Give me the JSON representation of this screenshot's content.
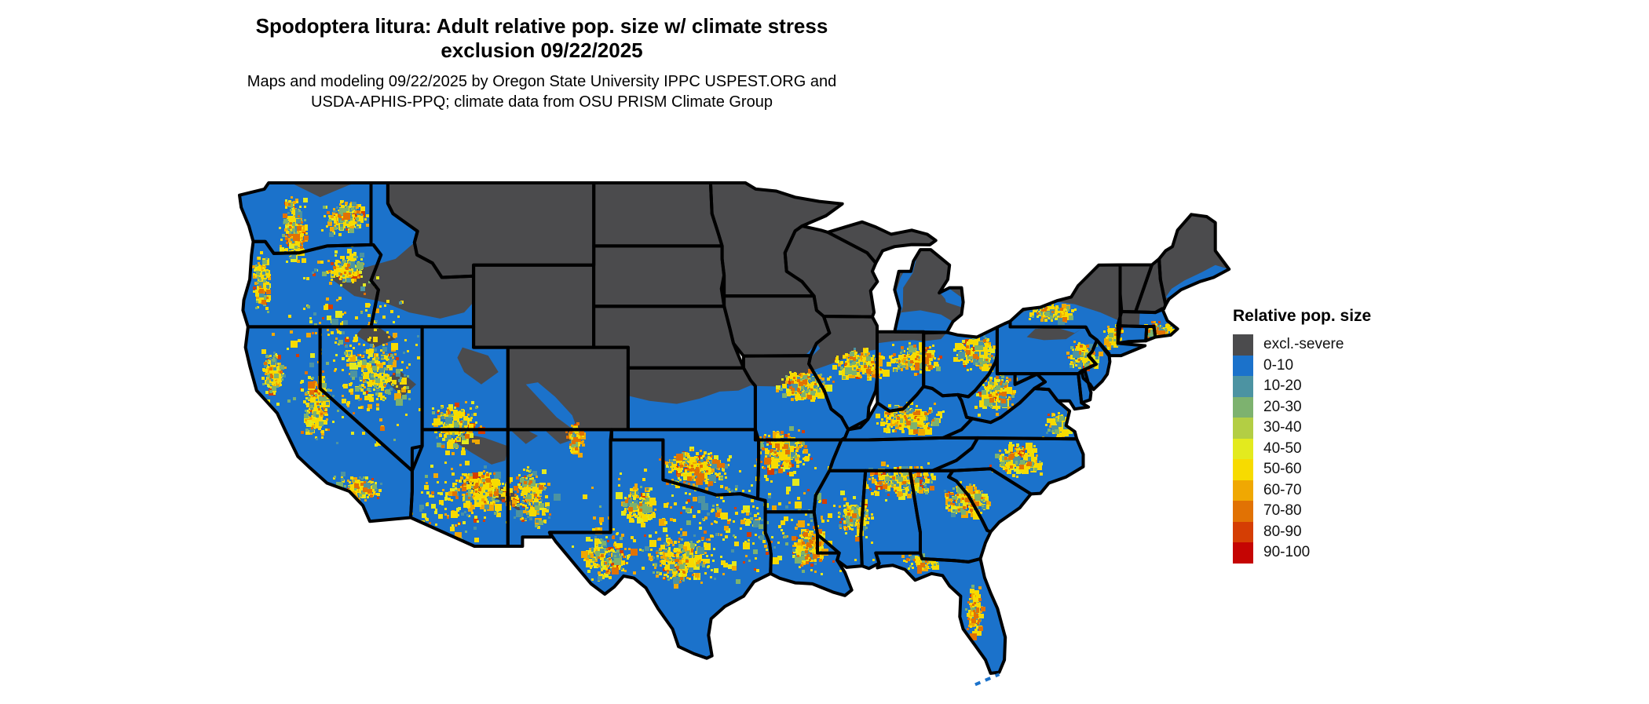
{
  "header": {
    "title_line1": "Spodoptera litura: Adult relative pop. size w/ climate stress",
    "title_line2": "exclusion 09/22/2025",
    "subtitle_line1": "Maps and modeling 09/22/2025 by Oregon State University IPPC USPEST.ORG and",
    "subtitle_line2": "USDA-APHIS-PPQ; climate data from OSU PRISM Climate Group"
  },
  "legend": {
    "title": "Relative pop. size",
    "items": [
      {
        "label": "excl.-severe",
        "color": "#4B4B4D"
      },
      {
        "label": "0-10",
        "color": "#1B72CB"
      },
      {
        "label": "10-20",
        "color": "#4C93A2"
      },
      {
        "label": "20-30",
        "color": "#7DB26F"
      },
      {
        "label": "30-40",
        "color": "#B3CE44"
      },
      {
        "label": "40-50",
        "color": "#E3EA1E"
      },
      {
        "label": "50-60",
        "color": "#F7DB00"
      },
      {
        "label": "60-70",
        "color": "#F0A802"
      },
      {
        "label": "70-80",
        "color": "#E17204"
      },
      {
        "label": "80-90",
        "color": "#D53E04"
      },
      {
        "label": "90-100",
        "color": "#C50503"
      }
    ]
  },
  "map": {
    "background": "#ffffff",
    "suitable_fill": "#1B72CB",
    "excluded_fill": "#4B4B4D",
    "border_color": "#000000",
    "speckle_palette": {
      "yellow": "#F7DB00",
      "yellow_green": "#E3EA1E",
      "lime": "#B3CE44",
      "orange": "#F0A802",
      "dark_orange": "#E17204",
      "red_orange": "#D53E04",
      "green": "#7DB26F",
      "teal": "#4C93A2"
    }
  }
}
